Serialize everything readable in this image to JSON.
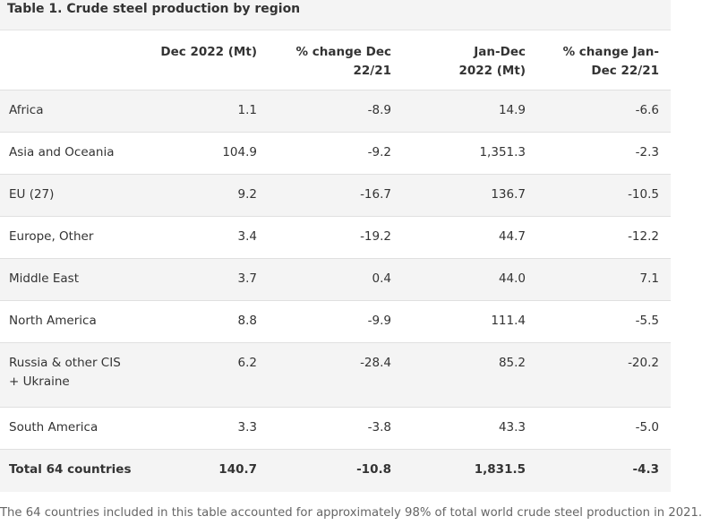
{
  "caption": "Table 1. Crude steel production by region",
  "columns": [
    "",
    "Dec 2022 (Mt)",
    "% change Dec 22/21",
    "Jan-Dec 2022 (Mt)",
    "% change Jan-Dec 22/21"
  ],
  "rows": [
    {
      "region": "Africa",
      "dec": "1.1",
      "dec_change": "-8.9",
      "ytd": "14.9",
      "ytd_change": "-6.6"
    },
    {
      "region": "Asia and Oceania",
      "dec": "104.9",
      "dec_change": "-9.2",
      "ytd": "1,351.3",
      "ytd_change": "-2.3"
    },
    {
      "region": "EU (27)",
      "dec": "9.2",
      "dec_change": "-16.7",
      "ytd": "136.7",
      "ytd_change": "-10.5"
    },
    {
      "region": "Europe, Other",
      "dec": "3.4",
      "dec_change": "-19.2",
      "ytd": "44.7",
      "ytd_change": "-12.2"
    },
    {
      "region": "Middle East",
      "dec": "3.7",
      "dec_change": "0.4",
      "ytd": "44.0",
      "ytd_change": "7.1"
    },
    {
      "region": "North America",
      "dec": "8.8",
      "dec_change": "-9.9",
      "ytd": "111.4",
      "ytd_change": "-5.5"
    },
    {
      "region": "Russia & other CIS + Ukraine",
      "dec": "6.2",
      "dec_change": "-28.4",
      "ytd": "85.2",
      "ytd_change": "-20.2"
    },
    {
      "region": "South America",
      "dec": "3.3",
      "dec_change": "-3.8",
      "ytd": "43.3",
      "ytd_change": "-5.0"
    },
    {
      "region": "Total 64 countries",
      "dec": "140.7",
      "dec_change": "-10.8",
      "ytd": "1,831.5",
      "ytd_change": "-4.3"
    }
  ],
  "note": "The 64 countries included in this table accounted for approximately 98% of total world crude steel production in 2021."
}
